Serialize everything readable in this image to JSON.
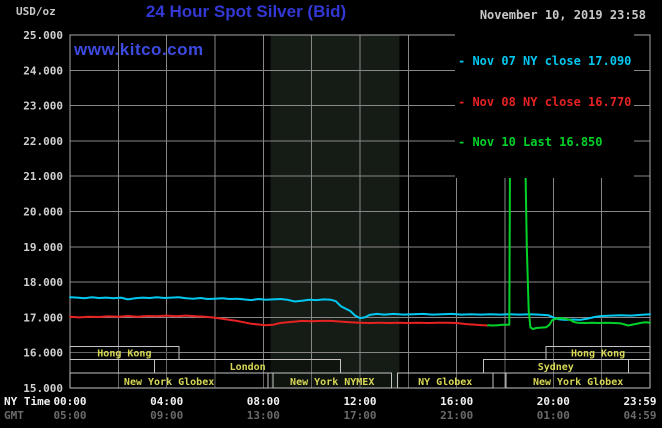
{
  "header": {
    "unit_label": "USD/oz",
    "title": "24 Hour Spot Silver (Bid)",
    "datetime": "November 10, 2019 23:58",
    "watermark": "www.kitco.com"
  },
  "legend": [
    {
      "label": "- Nov 07 NY close 17.090",
      "color": "#00c8f0"
    },
    {
      "label": "- Nov 08 NY close 16.770",
      "color": "#e62222"
    },
    {
      "label": "- Nov 10 Last 16.850",
      "color": "#00d22a"
    }
  ],
  "axes": {
    "y_axis": {
      "unit": "USD/oz",
      "ticks": [
        "25.000",
        "24.000",
        "23.000",
        "22.000",
        "21.000",
        "20.000",
        "19.000",
        "18.000",
        "17.000",
        "16.000",
        "15.000"
      ]
    },
    "x_axis": {
      "hours": [
        0,
        4,
        8,
        12,
        16,
        20,
        23.983
      ],
      "rows": [
        {
          "name": "NY Time",
          "labels": [
            "00:00",
            "04:00",
            "08:00",
            "12:00",
            "16:00",
            "20:00",
            "23:59"
          ],
          "color": "#f2f2f2"
        },
        {
          "name": "GMT",
          "labels": [
            "05:00",
            "09:00",
            "13:00",
            "17:00",
            "21:00",
            "01:00",
            "04:59"
          ],
          "color": "#6a6a6a"
        }
      ]
    }
  },
  "sessions": {
    "text_color": "#d8d855",
    "border_color": "#c4c4c4",
    "rows": [
      [
        {
          "label": "Hong Kong",
          "start_h": 0.0,
          "end_h": 4.5
        },
        {
          "label": "Hong Kong",
          "start_h": 19.7,
          "end_h": 24.0
        }
      ],
      [
        {
          "label": "London",
          "start_h": 3.5,
          "end_h": 11.2
        },
        {
          "label": "Sydney",
          "start_h": 17.1,
          "end_h": 23.1
        }
      ],
      [
        {
          "label": "New York Globex",
          "start_h": 0.0,
          "end_h": 8.2
        },
        {
          "label": "New York NYMEX",
          "start_h": 8.4,
          "end_h": 13.3
        },
        {
          "label": "NY Globex",
          "start_h": 13.55,
          "end_h": 17.5
        },
        {
          "label": "New York Globex",
          "start_h": 18.05,
          "end_h": 24.0
        }
      ]
    ]
  },
  "chart_data": {
    "type": "line",
    "title": "24 Hour Spot Silver (Bid)",
    "ylabel": "USD/oz",
    "ylim": [
      15,
      25
    ],
    "xlim_hours": [
      0,
      24
    ],
    "y_tick_step": 1,
    "grid": true,
    "legend_position": "top-right",
    "shaded_region_hours": [
      8.3,
      13.63
    ],
    "series": [
      {
        "name": "Nov 07 NY close 17.090",
        "color": "#00c8f0",
        "points": [
          [
            0,
            17.57
          ],
          [
            0.3,
            17.56
          ],
          [
            0.6,
            17.54
          ],
          [
            0.9,
            17.57
          ],
          [
            1.2,
            17.55
          ],
          [
            1.5,
            17.56
          ],
          [
            1.8,
            17.54
          ],
          [
            2.1,
            17.56
          ],
          [
            2.4,
            17.51
          ],
          [
            2.7,
            17.54
          ],
          [
            3.0,
            17.56
          ],
          [
            3.3,
            17.55
          ],
          [
            3.6,
            17.57
          ],
          [
            3.9,
            17.55
          ],
          [
            4.2,
            17.56
          ],
          [
            4.5,
            17.57
          ],
          [
            4.8,
            17.54
          ],
          [
            5.1,
            17.53
          ],
          [
            5.4,
            17.55
          ],
          [
            5.7,
            17.52
          ],
          [
            6.0,
            17.53
          ],
          [
            6.3,
            17.54
          ],
          [
            6.6,
            17.52
          ],
          [
            6.9,
            17.53
          ],
          [
            7.2,
            17.51
          ],
          [
            7.5,
            17.49
          ],
          [
            7.8,
            17.52
          ],
          [
            8.1,
            17.5
          ],
          [
            8.4,
            17.51
          ],
          [
            8.7,
            17.52
          ],
          [
            9.0,
            17.5
          ],
          [
            9.3,
            17.45
          ],
          [
            9.6,
            17.47
          ],
          [
            9.9,
            17.5
          ],
          [
            10.2,
            17.49
          ],
          [
            10.5,
            17.51
          ],
          [
            10.8,
            17.5
          ],
          [
            11.0,
            17.46
          ],
          [
            11.2,
            17.32
          ],
          [
            11.4,
            17.25
          ],
          [
            11.6,
            17.18
          ],
          [
            11.8,
            17.05
          ],
          [
            12.0,
            16.98
          ],
          [
            12.2,
            17.0
          ],
          [
            12.4,
            17.07
          ],
          [
            12.7,
            17.1
          ],
          [
            13.0,
            17.08
          ],
          [
            13.4,
            17.1
          ],
          [
            13.8,
            17.08
          ],
          [
            14.2,
            17.09
          ],
          [
            14.6,
            17.1
          ],
          [
            15.0,
            17.08
          ],
          [
            15.4,
            17.09
          ],
          [
            15.8,
            17.1
          ],
          [
            16.2,
            17.08
          ],
          [
            16.6,
            17.09
          ],
          [
            17.0,
            17.08
          ],
          [
            17.4,
            17.09
          ],
          [
            17.8,
            17.08
          ],
          [
            18.2,
            17.09
          ],
          [
            18.6,
            17.08
          ],
          [
            19.0,
            17.09
          ],
          [
            19.4,
            17.08
          ],
          [
            19.8,
            17.06
          ],
          [
            20.0,
            17.0
          ],
          [
            20.2,
            16.95
          ],
          [
            20.5,
            16.93
          ],
          [
            20.8,
            16.94
          ],
          [
            21.1,
            16.93
          ],
          [
            21.4,
            16.96
          ],
          [
            21.7,
            17.01
          ],
          [
            22.0,
            17.04
          ],
          [
            22.4,
            17.05
          ],
          [
            22.8,
            17.06
          ],
          [
            23.2,
            17.05
          ],
          [
            23.6,
            17.07
          ],
          [
            24.0,
            17.09
          ]
        ]
      },
      {
        "name": "Nov 08 NY close 16.770",
        "color": "#e62222",
        "points": [
          [
            0,
            17.02
          ],
          [
            0.4,
            17.0
          ],
          [
            0.8,
            17.02
          ],
          [
            1.2,
            17.01
          ],
          [
            1.6,
            17.03
          ],
          [
            2.0,
            17.02
          ],
          [
            2.4,
            17.04
          ],
          [
            2.8,
            17.02
          ],
          [
            3.2,
            17.04
          ],
          [
            3.6,
            17.03
          ],
          [
            4.0,
            17.05
          ],
          [
            4.4,
            17.03
          ],
          [
            4.8,
            17.05
          ],
          [
            5.2,
            17.03
          ],
          [
            5.6,
            17.02
          ],
          [
            6.0,
            16.99
          ],
          [
            6.3,
            16.96
          ],
          [
            6.6,
            16.93
          ],
          [
            6.9,
            16.9
          ],
          [
            7.2,
            16.86
          ],
          [
            7.5,
            16.82
          ],
          [
            7.8,
            16.8
          ],
          [
            8.1,
            16.78
          ],
          [
            8.4,
            16.79
          ],
          [
            8.7,
            16.84
          ],
          [
            9.0,
            16.86
          ],
          [
            9.3,
            16.88
          ],
          [
            9.6,
            16.9
          ],
          [
            10.0,
            16.89
          ],
          [
            10.4,
            16.9
          ],
          [
            10.8,
            16.9
          ],
          [
            11.2,
            16.88
          ],
          [
            11.6,
            16.86
          ],
          [
            12.0,
            16.85
          ],
          [
            12.4,
            16.84
          ],
          [
            12.8,
            16.85
          ],
          [
            13.2,
            16.84
          ],
          [
            13.6,
            16.85
          ],
          [
            14.0,
            16.84
          ],
          [
            14.4,
            16.85
          ],
          [
            14.8,
            16.84
          ],
          [
            15.2,
            16.85
          ],
          [
            15.6,
            16.85
          ],
          [
            16.0,
            16.84
          ],
          [
            16.4,
            16.81
          ],
          [
            16.8,
            16.79
          ],
          [
            17.1,
            16.78
          ],
          [
            17.3,
            16.77
          ]
        ]
      },
      {
        "name": "Nov 10 Last 16.850",
        "color": "#00d22a",
        "points": [
          [
            17.3,
            16.78
          ],
          [
            17.5,
            16.77
          ],
          [
            17.7,
            16.78
          ],
          [
            17.9,
            16.79
          ],
          [
            18.1,
            16.79
          ],
          [
            18.18,
            16.79
          ],
          [
            18.22,
            23.48
          ],
          [
            18.5,
            23.48
          ],
          [
            18.78,
            23.48
          ],
          [
            18.84,
            21.5
          ],
          [
            18.9,
            19.0
          ],
          [
            18.98,
            17.2
          ],
          [
            19.05,
            16.72
          ],
          [
            19.15,
            16.67
          ],
          [
            19.3,
            16.7
          ],
          [
            19.5,
            16.71
          ],
          [
            19.7,
            16.72
          ],
          [
            19.85,
            16.8
          ],
          [
            19.95,
            16.92
          ],
          [
            20.1,
            16.96
          ],
          [
            20.3,
            16.98
          ],
          [
            20.5,
            16.96
          ],
          [
            20.7,
            16.93
          ],
          [
            20.85,
            16.87
          ],
          [
            21.0,
            16.85
          ],
          [
            21.3,
            16.84
          ],
          [
            21.6,
            16.85
          ],
          [
            21.9,
            16.84
          ],
          [
            22.2,
            16.85
          ],
          [
            22.5,
            16.84
          ],
          [
            22.8,
            16.83
          ],
          [
            23.1,
            16.77
          ],
          [
            23.3,
            16.8
          ],
          [
            23.6,
            16.84
          ],
          [
            23.8,
            16.86
          ],
          [
            24.0,
            16.85
          ]
        ]
      }
    ]
  }
}
